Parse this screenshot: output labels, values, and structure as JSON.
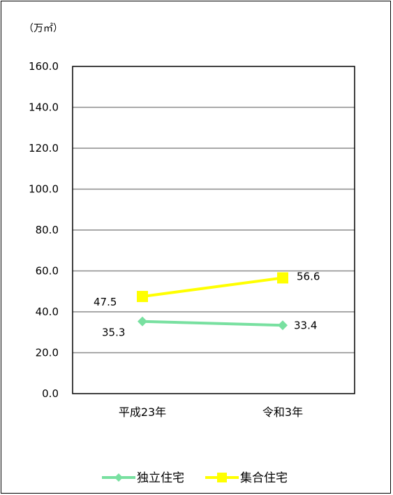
{
  "chart_data": {
    "type": "line",
    "title": "",
    "unit_label": "（万㎡）",
    "categories": [
      "平成23年",
      "令和3年"
    ],
    "ylim": [
      0,
      160
    ],
    "yticks": [
      "0.0",
      "20.0",
      "40.0",
      "60.0",
      "80.0",
      "100.0",
      "120.0",
      "140.0",
      "160.0"
    ],
    "grid": true,
    "legend_position": "bottom",
    "series": [
      {
        "name": "独立住宅",
        "values": [
          35.3,
          33.4
        ],
        "labels": [
          "35.3",
          "33.4"
        ],
        "color": "#78e0a0",
        "marker": "diamond"
      },
      {
        "name": "集合住宅",
        "values": [
          47.5,
          56.6
        ],
        "labels": [
          "47.5",
          "56.6"
        ],
        "color": "#ffff00",
        "marker": "square"
      }
    ]
  }
}
